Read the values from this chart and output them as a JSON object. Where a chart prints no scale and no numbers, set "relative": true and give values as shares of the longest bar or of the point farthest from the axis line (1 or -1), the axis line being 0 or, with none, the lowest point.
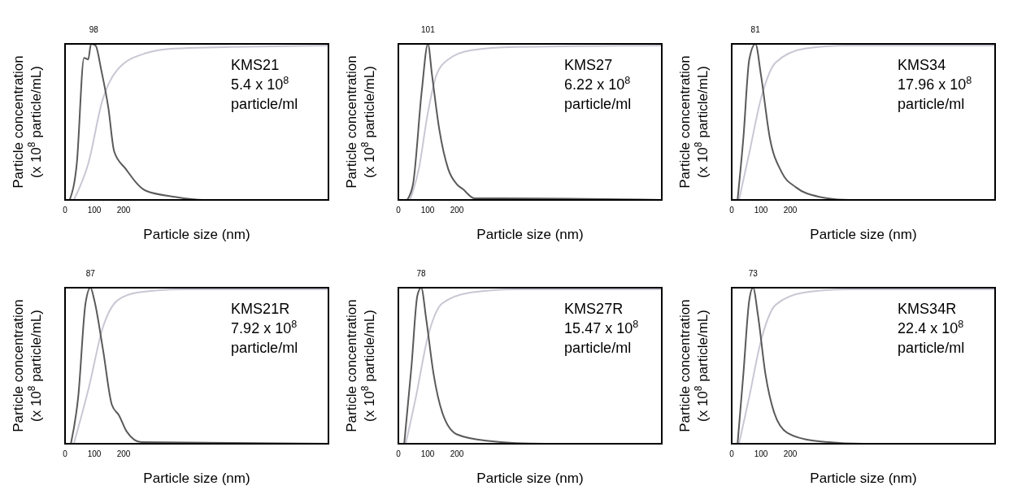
{
  "chart_data": [
    {
      "type": "line",
      "relative": true,
      "xlabel": "Particle size (nm)",
      "ylabel": "Particle concentration (x 10$^{8}$ particle/mL)",
      "xlim": [
        0,
        900
      ],
      "xticks": [
        0,
        100,
        200
      ],
      "annotations": [
        {
          "text": "98",
          "x": 98,
          "y": 1
        },
        "KMS21",
        "5.4 x 10$^{8}$",
        "particle/ml"
      ],
      "series": [
        {
          "color": "#5a5a5a",
          "x": [
            16,
            40,
            65,
            79,
            89,
            104,
            124,
            148,
            168,
            207,
            275,
            374,
            472,
            900
          ],
          "values": [
            0,
            0.23,
            0.91,
            0.9,
            1,
            0.99,
            0.83,
            0.59,
            0.31,
            0.2,
            0.06,
            0.02,
            0,
            0
          ]
        },
        {
          "color": "#c8c8d4",
          "x": [
            30,
            79,
            128,
            177,
            275,
            374,
            570,
            900
          ],
          "values": [
            0,
            0.23,
            0.64,
            0.83,
            0.94,
            0.97,
            0.98,
            0.99
          ]
        }
      ]
    },
    {
      "type": "line",
      "relative": true,
      "xlabel": "Particle size (nm)",
      "ylabel": "Particle concentration (x 10$^{8}$ particle/mL)",
      "xlim": [
        0,
        900
      ],
      "xticks": [
        0,
        100,
        200
      ],
      "annotations": [
        {
          "text": "101",
          "x": 101,
          "y": 1
        },
        "KMS27",
        "6.22 x 10$^{8}$",
        "particle/ml"
      ],
      "series": [
        {
          "color": "#5a5a5a",
          "x": [
            30,
            50,
            80,
            101,
            115,
            140,
            170,
            200,
            220,
            260,
            350,
            900
          ],
          "values": [
            0,
            0.1,
            0.7,
            1,
            0.8,
            0.45,
            0.2,
            0.1,
            0.07,
            0.01,
            0.01,
            0
          ]
        },
        {
          "color": "#c8c8d4",
          "x": [
            40,
            70,
            100,
            130,
            170,
            250,
            400,
            900
          ],
          "values": [
            0,
            0.2,
            0.55,
            0.8,
            0.9,
            0.96,
            0.98,
            0.99
          ]
        }
      ]
    },
    {
      "type": "line",
      "relative": true,
      "xlabel": "Particle size (nm)",
      "ylabel": "Particle concentration (x 10$^{8}$ particle/mL)",
      "xlim": [
        0,
        900
      ],
      "xticks": [
        0,
        100,
        200
      ],
      "annotations": [
        {
          "text": "81",
          "x": 81,
          "y": 1
        },
        "KMS34",
        "17.96 x 10$^{8}$",
        "particle/ml"
      ],
      "series": [
        {
          "color": "#5a5a5a",
          "x": [
            20,
            40,
            60,
            81,
            100,
            130,
            170,
            220,
            300,
            400,
            900
          ],
          "values": [
            0,
            0.4,
            0.9,
            1,
            0.8,
            0.4,
            0.18,
            0.08,
            0.02,
            0,
            0
          ]
        },
        {
          "color": "#c8c8d4",
          "x": [
            25,
            60,
            100,
            150,
            250,
            400,
            900
          ],
          "values": [
            0,
            0.3,
            0.65,
            0.88,
            0.97,
            0.99,
            0.99
          ]
        }
      ]
    },
    {
      "type": "line",
      "relative": true,
      "xlabel": "Particle size (nm)",
      "ylabel": "Particle concentration (x 10$^{8}$ particle/mL)",
      "xlim": [
        0,
        900
      ],
      "xticks": [
        0,
        100,
        200
      ],
      "annotations": [
        {
          "text": "87",
          "x": 87,
          "y": 1
        },
        "KMS21R",
        "7.92 x 10$^{8}$",
        "particle/ml"
      ],
      "series": [
        {
          "color": "#5a5a5a",
          "x": [
            20,
            45,
            70,
            87,
            100,
            130,
            160,
            185,
            210,
            260,
            900
          ],
          "values": [
            0,
            0.3,
            0.9,
            1,
            0.92,
            0.6,
            0.25,
            0.18,
            0.08,
            0.01,
            0
          ]
        },
        {
          "color": "#c8c8d4",
          "x": [
            30,
            80,
            130,
            180,
            250,
            400,
            900
          ],
          "values": [
            0,
            0.35,
            0.75,
            0.92,
            0.97,
            0.99,
            0.99
          ]
        }
      ]
    },
    {
      "type": "line",
      "relative": true,
      "xlabel": "Particle size (nm)",
      "ylabel": "Particle concentration (x 10$^{8}$ particle/mL)",
      "xlim": [
        0,
        900
      ],
      "xticks": [
        0,
        100,
        200
      ],
      "annotations": [
        {
          "text": "78",
          "x": 78,
          "y": 1
        },
        "KMS27R",
        "15.47 x 10$^{8}$",
        "particle/ml"
      ],
      "series": [
        {
          "color": "#5a5a5a",
          "x": [
            20,
            45,
            65,
            78,
            95,
            120,
            150,
            200,
            300,
            500,
            900
          ],
          "values": [
            0,
            0.5,
            0.95,
            1,
            0.8,
            0.45,
            0.2,
            0.06,
            0.02,
            0,
            0
          ]
        },
        {
          "color": "#c8c8d4",
          "x": [
            25,
            60,
            100,
            150,
            250,
            400,
            900
          ],
          "values": [
            0,
            0.3,
            0.68,
            0.9,
            0.97,
            0.99,
            0.99
          ]
        }
      ]
    },
    {
      "type": "line",
      "relative": true,
      "xlabel": "Particle size (nm)",
      "ylabel": "Particle concentration (x 10$^{8}$ particle/mL)",
      "xlim": [
        0,
        900
      ],
      "xticks": [
        0,
        100,
        200
      ],
      "annotations": [
        {
          "text": "73",
          "x": 73,
          "y": 1
        },
        "KMS34R",
        "22.4 x 10$^{8}$",
        "particle/ml"
      ],
      "series": [
        {
          "color": "#5a5a5a",
          "x": [
            20,
            40,
            60,
            73,
            90,
            115,
            145,
            190,
            280,
            450,
            900
          ],
          "values": [
            0,
            0.45,
            0.92,
            1,
            0.82,
            0.45,
            0.2,
            0.07,
            0.02,
            0,
            0
          ]
        },
        {
          "color": "#c8c8d4",
          "x": [
            25,
            60,
            100,
            150,
            250,
            400,
            900
          ],
          "values": [
            0,
            0.3,
            0.66,
            0.89,
            0.97,
            0.99,
            0.99
          ]
        }
      ]
    }
  ]
}
